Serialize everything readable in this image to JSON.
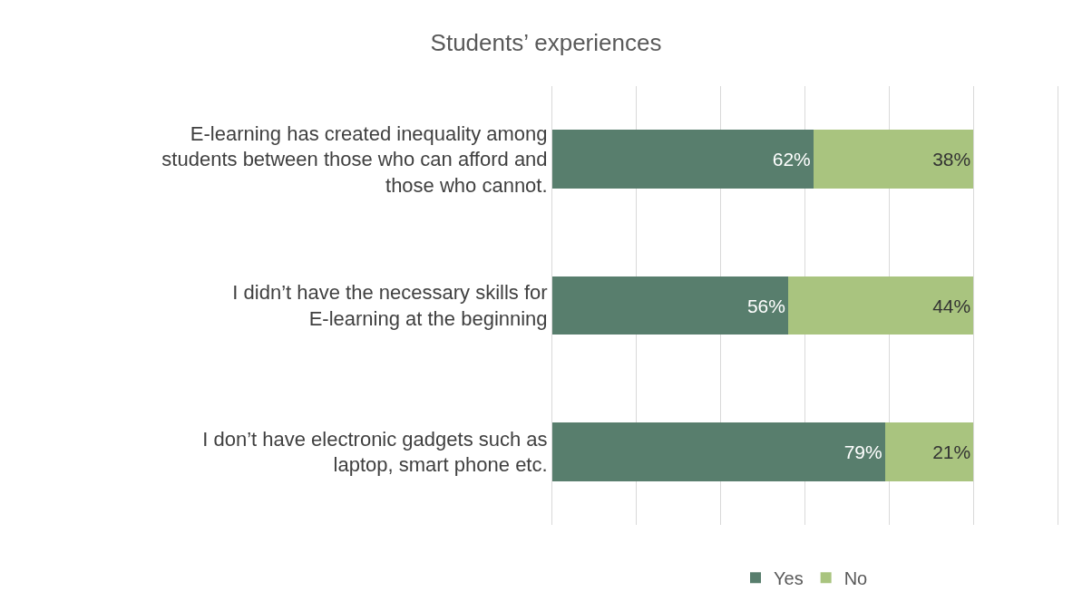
{
  "chart_data": {
    "type": "bar",
    "title": "Students’ experiences",
    "orientation": "horizontal",
    "stacked": true,
    "categories": [
      "E-learning has created inequality among students between those who can afford and those who cannot.",
      "I didn’t have the necessary skills for E-learning at the beginning",
      "I don’t have electronic gadgets such as laptop, smart phone etc."
    ],
    "series": [
      {
        "name": "Yes",
        "color": "#587e6d",
        "values": [
          62,
          56,
          79
        ],
        "value_labels": [
          "62%",
          "56%",
          "79%"
        ]
      },
      {
        "name": "No",
        "color": "#a9c47f",
        "values": [
          38,
          44,
          21
        ],
        "value_labels": [
          "38%",
          "44%",
          "21%"
        ]
      }
    ],
    "xlim": [
      0,
      120
    ],
    "xticks": [
      {
        "value": 0,
        "label": null
      },
      {
        "value": 20,
        "label": null
      },
      {
        "value": 40,
        "label": null
      },
      {
        "value": 60,
        "label": null
      },
      {
        "value": 80,
        "label": null
      },
      {
        "value": 100,
        "label": null
      },
      {
        "value": 120,
        "label": null
      }
    ],
    "tick_labels": "y",
    "grid": "x",
    "legend": "bottom"
  }
}
